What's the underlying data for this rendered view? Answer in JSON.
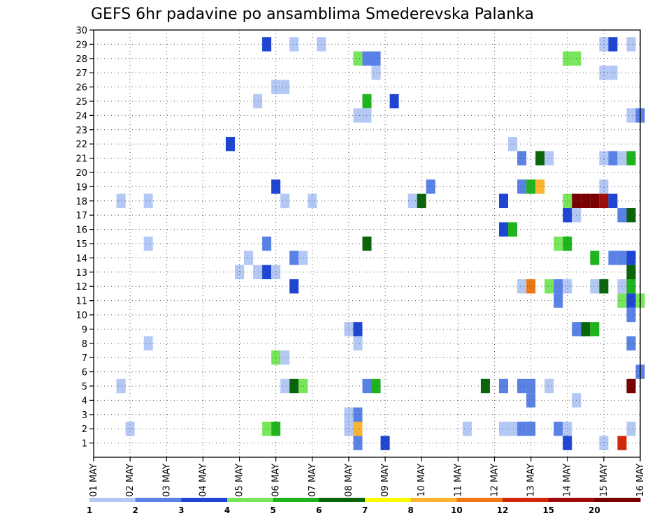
{
  "chart_data": {
    "type": "heatmap",
    "title": "GEFS 6hr padavine po ansamblima Smederevska Palanka",
    "x_tick_labels": [
      "01 MAY",
      "02 MAY",
      "03 MAY",
      "04 MAY",
      "05 MAY",
      "06 MAY",
      "07 MAY",
      "08 MAY",
      "09 MAY",
      "10 MAY",
      "11 MAY",
      "12 MAY",
      "13 MAY",
      "14 MAY",
      "15 MAY",
      "16 MAY"
    ],
    "x_range_days": [
      1,
      16
    ],
    "x_step_hours": 6,
    "y_tick_labels": [
      "1",
      "2",
      "3",
      "4",
      "5",
      "6",
      "7",
      "8",
      "9",
      "10",
      "11",
      "12",
      "13",
      "14",
      "15",
      "16",
      "17",
      "18",
      "19",
      "20",
      "21",
      "22",
      "23",
      "24",
      "25",
      "26",
      "27",
      "28",
      "29",
      "30"
    ],
    "y_range": [
      0,
      30
    ],
    "grid": true,
    "legend": {
      "placement": "bottom",
      "labels": [
        "1",
        "2",
        "3",
        "4",
        "5",
        "6",
        "7",
        "8",
        "10",
        "12",
        "15",
        "20"
      ],
      "colors": [
        "#b4c8f5",
        "#5a82e6",
        "#1e46d2",
        "#78e65a",
        "#1eb41e",
        "#0a640a",
        "#fafa00",
        "#fab432",
        "#f07814",
        "#d2280a",
        "#a00a0a",
        "#780000"
      ]
    },
    "cell_value_note": "cells list [day, member, color_index]; day is fractional day of May at 6-hour steps, color_index refers to legend.colors",
    "cells": [
      [
        5.75,
        29,
        2
      ],
      [
        6.5,
        29,
        0
      ],
      [
        7.25,
        29,
        0
      ],
      [
        15.0,
        29,
        0
      ],
      [
        15.25,
        29,
        2
      ],
      [
        15.75,
        29,
        0
      ],
      [
        8.25,
        28,
        3
      ],
      [
        8.5,
        28,
        1
      ],
      [
        8.75,
        28,
        1
      ],
      [
        14.0,
        28,
        3
      ],
      [
        14.25,
        28,
        3
      ],
      [
        8.75,
        27,
        0
      ],
      [
        15.0,
        27,
        0
      ],
      [
        15.25,
        27,
        0
      ],
      [
        6.0,
        26,
        0
      ],
      [
        6.25,
        26,
        0
      ],
      [
        5.5,
        25,
        0
      ],
      [
        8.5,
        25,
        4
      ],
      [
        9.25,
        25,
        2
      ],
      [
        8.25,
        24,
        0
      ],
      [
        8.5,
        24,
        0
      ],
      [
        15.75,
        24,
        0
      ],
      [
        16.0,
        24,
        1
      ],
      [
        4.75,
        22,
        2
      ],
      [
        12.5,
        22,
        0
      ],
      [
        12.75,
        21,
        1
      ],
      [
        13.25,
        21,
        5
      ],
      [
        13.5,
        21,
        0
      ],
      [
        15.0,
        21,
        0
      ],
      [
        15.25,
        21,
        1
      ],
      [
        15.5,
        21,
        0
      ],
      [
        15.75,
        21,
        4
      ],
      [
        6.0,
        19,
        2
      ],
      [
        10.25,
        19,
        1
      ],
      [
        12.75,
        19,
        1
      ],
      [
        13.0,
        19,
        4
      ],
      [
        13.25,
        19,
        7
      ],
      [
        15.0,
        19,
        0
      ],
      [
        1.75,
        18,
        0
      ],
      [
        2.5,
        18,
        0
      ],
      [
        6.25,
        18,
        0
      ],
      [
        7.0,
        18,
        0
      ],
      [
        9.75,
        18,
        0
      ],
      [
        10.0,
        18,
        5
      ],
      [
        12.25,
        18,
        2
      ],
      [
        14.0,
        18,
        3
      ],
      [
        14.25,
        18,
        11
      ],
      [
        14.5,
        18,
        11
      ],
      [
        14.75,
        18,
        11
      ],
      [
        15.0,
        18,
        10
      ],
      [
        15.25,
        18,
        2
      ],
      [
        14.0,
        17,
        2
      ],
      [
        14.25,
        17,
        0
      ],
      [
        15.5,
        17,
        1
      ],
      [
        15.75,
        17,
        5
      ],
      [
        12.25,
        16,
        2
      ],
      [
        12.5,
        16,
        4
      ],
      [
        2.5,
        15,
        0
      ],
      [
        5.75,
        15,
        1
      ],
      [
        8.5,
        15,
        5
      ],
      [
        13.75,
        15,
        3
      ],
      [
        14.0,
        15,
        4
      ],
      [
        5.25,
        14,
        0
      ],
      [
        6.5,
        14,
        1
      ],
      [
        6.75,
        14,
        0
      ],
      [
        14.75,
        14,
        4
      ],
      [
        15.25,
        14,
        1
      ],
      [
        15.5,
        14,
        1
      ],
      [
        15.75,
        14,
        2
      ],
      [
        5.0,
        13,
        0
      ],
      [
        5.5,
        13,
        0
      ],
      [
        5.75,
        13,
        2
      ],
      [
        6.0,
        13,
        0
      ],
      [
        15.75,
        13,
        5
      ],
      [
        6.5,
        12,
        2
      ],
      [
        12.75,
        12,
        0
      ],
      [
        13.0,
        12,
        8
      ],
      [
        13.5,
        12,
        3
      ],
      [
        13.75,
        12,
        1
      ],
      [
        14.0,
        12,
        0
      ],
      [
        14.75,
        12,
        0
      ],
      [
        15.0,
        12,
        5
      ],
      [
        15.5,
        12,
        0
      ],
      [
        15.75,
        12,
        4
      ],
      [
        13.75,
        11,
        1
      ],
      [
        15.5,
        11,
        3
      ],
      [
        15.75,
        11,
        2
      ],
      [
        16.0,
        11,
        3
      ],
      [
        15.75,
        10,
        1
      ],
      [
        8.0,
        9,
        0
      ],
      [
        8.25,
        9,
        2
      ],
      [
        14.25,
        9,
        1
      ],
      [
        14.5,
        9,
        5
      ],
      [
        14.75,
        9,
        4
      ],
      [
        2.5,
        8,
        0
      ],
      [
        8.25,
        8,
        0
      ],
      [
        15.75,
        8,
        1
      ],
      [
        6.0,
        7,
        3
      ],
      [
        6.25,
        7,
        0
      ],
      [
        16.0,
        6,
        1
      ],
      [
        1.75,
        5,
        0
      ],
      [
        6.25,
        5,
        0
      ],
      [
        6.5,
        5,
        5
      ],
      [
        6.75,
        5,
        3
      ],
      [
        8.5,
        5,
        1
      ],
      [
        8.75,
        5,
        4
      ],
      [
        11.75,
        5,
        5
      ],
      [
        12.25,
        5,
        1
      ],
      [
        12.75,
        5,
        1
      ],
      [
        13.0,
        5,
        1
      ],
      [
        13.5,
        5,
        0
      ],
      [
        15.75,
        5,
        11
      ],
      [
        13.0,
        4,
        1
      ],
      [
        14.25,
        4,
        0
      ],
      [
        8.0,
        3,
        0
      ],
      [
        8.25,
        3,
        1
      ],
      [
        2.0,
        2,
        0
      ],
      [
        5.75,
        2,
        3
      ],
      [
        6.0,
        2,
        4
      ],
      [
        8.0,
        2,
        0
      ],
      [
        8.25,
        2,
        7
      ],
      [
        11.25,
        2,
        0
      ],
      [
        12.25,
        2,
        0
      ],
      [
        12.5,
        2,
        0
      ],
      [
        12.75,
        2,
        1
      ],
      [
        13.0,
        2,
        1
      ],
      [
        13.75,
        2,
        1
      ],
      [
        14.0,
        2,
        0
      ],
      [
        15.75,
        2,
        0
      ],
      [
        8.25,
        1,
        1
      ],
      [
        9.0,
        1,
        2
      ],
      [
        14.0,
        1,
        2
      ],
      [
        15.0,
        1,
        0
      ],
      [
        15.5,
        1,
        9
      ]
    ]
  }
}
